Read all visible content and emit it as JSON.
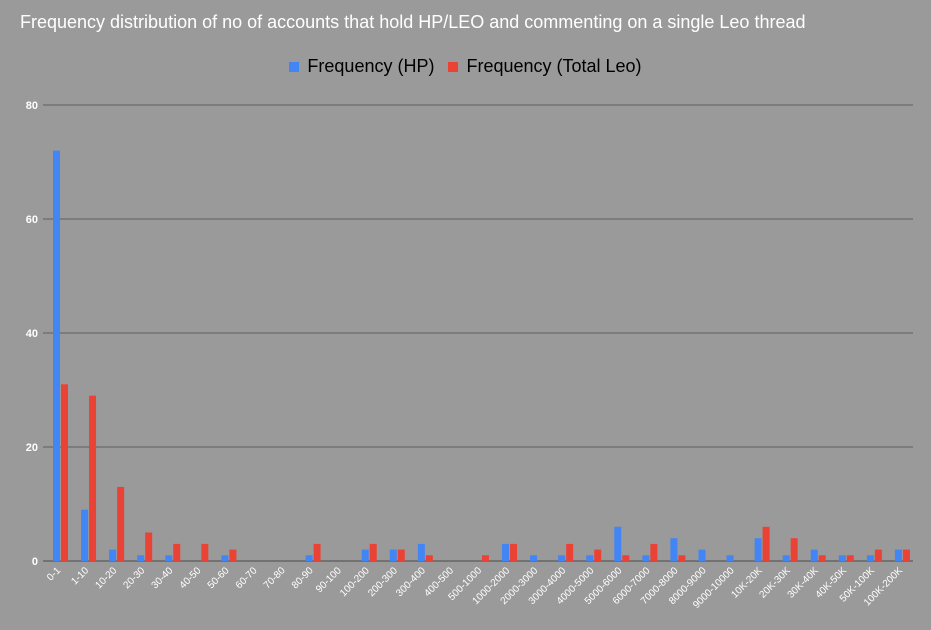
{
  "colors": {
    "hp": "#4285f4",
    "leo": "#ea4335",
    "grid": "#5f5f5f"
  },
  "chart_data": {
    "type": "bar",
    "title": "Frequency distribution of no of accounts that hold HP/LEO and commenting on a single Leo thread",
    "ylim": [
      0,
      80
    ],
    "yticks": [
      0,
      20,
      40,
      60,
      80
    ],
    "grid": true,
    "legend": "top",
    "categories": [
      "0-1",
      "1-10",
      "10-20",
      "20-30",
      "30-40",
      "40-50",
      "50-60",
      "60-70",
      "70-80",
      "80-90",
      "90-100",
      "100-200",
      "200-300",
      "300-400",
      "400-500",
      "500-1000",
      "1000-2000",
      "2000-3000",
      "3000-4000",
      "4000-5000",
      "5000-6000",
      "6000-7000",
      "7000-8000",
      "8000-9000",
      "9000-10000",
      "10K-20K",
      "20K-30K",
      "30K-40K",
      "40K-50K",
      "50K-100K",
      "100K-200K"
    ],
    "series": [
      {
        "name": "Frequency (HP)",
        "values": [
          72,
          9,
          2,
          1,
          1,
          0,
          1,
          0,
          0,
          1,
          0,
          2,
          2,
          3,
          0,
          0,
          3,
          1,
          1,
          1,
          6,
          1,
          4,
          2,
          1,
          4,
          1,
          2,
          1,
          1,
          2
        ]
      },
      {
        "name": "Frequency (Total Leo)",
        "values": [
          31,
          29,
          13,
          5,
          3,
          3,
          2,
          0,
          0,
          3,
          0,
          3,
          2,
          1,
          0,
          1,
          3,
          0,
          3,
          2,
          1,
          3,
          1,
          0,
          0,
          6,
          4,
          1,
          1,
          2,
          2
        ]
      }
    ]
  }
}
